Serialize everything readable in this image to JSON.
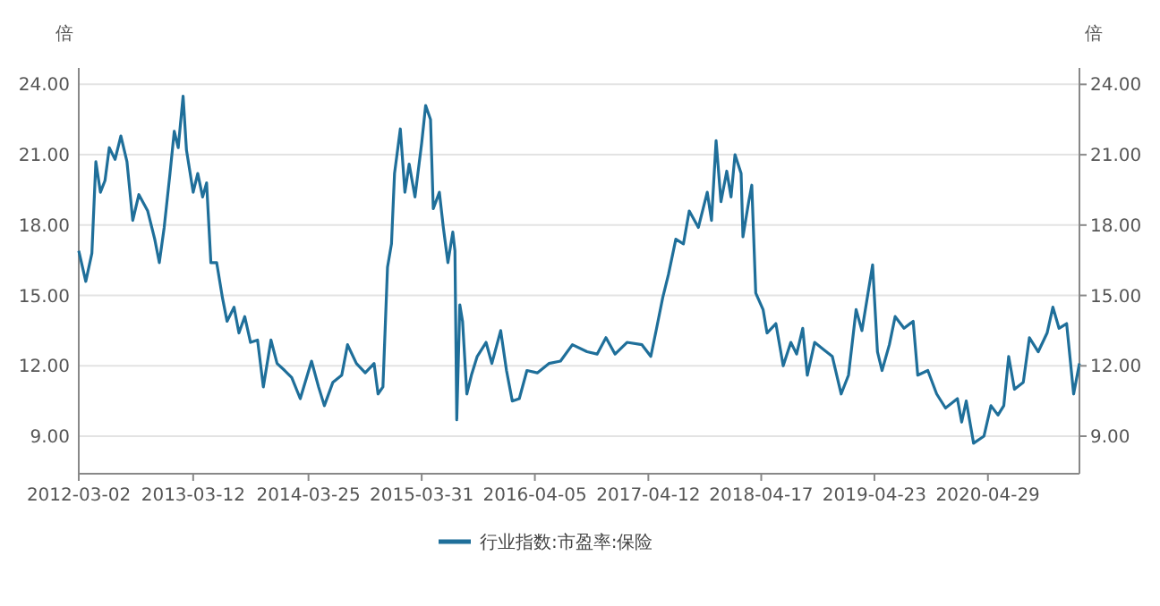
{
  "chart_data": {
    "type": "line",
    "ylabel": "倍",
    "y2label": "倍",
    "x": [
      "2012-03-02",
      "2012-03-25",
      "2012-04-14",
      "2012-04-27",
      "2012-05-12",
      "2012-05-27",
      "2012-06-10",
      "2012-06-29",
      "2012-07-18",
      "2012-08-07",
      "2012-08-26",
      "2012-09-15",
      "2012-10-14",
      "2012-11-06",
      "2012-11-21",
      "2012-12-07",
      "2012-12-26",
      "2013-01-09",
      "2013-01-22",
      "2013-02-07",
      "2013-02-18",
      "2013-03-12",
      "2013-03-27",
      "2013-04-12",
      "2013-04-25",
      "2013-05-09",
      "2013-05-28",
      "2013-06-16",
      "2013-07-01",
      "2013-07-24",
      "2013-08-09",
      "2013-08-28",
      "2013-09-16",
      "2013-10-09",
      "2013-10-28",
      "2013-11-22",
      "2013-12-12",
      "2014-01-06",
      "2014-01-29",
      "2014-02-26",
      "2014-04-04",
      "2014-04-27",
      "2014-05-16",
      "2014-06-13",
      "2014-07-12",
      "2014-07-31",
      "2014-08-29",
      "2014-09-27",
      "2014-10-26",
      "2014-11-08",
      "2014-11-24",
      "2014-12-09",
      "2014-12-22",
      "2015-01-01",
      "2015-01-20",
      "2015-02-04",
      "2015-02-18",
      "2015-03-09",
      "2015-03-31",
      "2015-04-13",
      "2015-04-29",
      "2015-05-08",
      "2015-05-28",
      "2015-06-10",
      "2015-06-25",
      "2015-07-11",
      "2015-07-18",
      "2015-07-24",
      "2015-08-03",
      "2015-08-12",
      "2015-08-26",
      "2015-09-10",
      "2015-09-29",
      "2015-10-28",
      "2015-11-16",
      "2015-12-15",
      "2016-01-03",
      "2016-01-22",
      "2016-02-14",
      "2016-03-10",
      "2016-04-13",
      "2016-05-21",
      "2016-06-28",
      "2016-08-06",
      "2016-09-23",
      "2016-10-26",
      "2016-11-24",
      "2016-12-24",
      "2017-02-01",
      "2017-03-22",
      "2017-04-20",
      "2017-05-09",
      "2017-05-29",
      "2017-06-17",
      "2017-07-11",
      "2017-08-05",
      "2017-08-24",
      "2017-09-23",
      "2017-10-22",
      "2017-11-05",
      "2017-11-20",
      "2017-12-06",
      "2017-12-25",
      "2018-01-08",
      "2018-01-21",
      "2018-02-10",
      "2018-02-16",
      "2018-03-07",
      "2018-03-17",
      "2018-03-30",
      "2018-04-23",
      "2018-05-06",
      "2018-06-04",
      "2018-06-28",
      "2018-07-23",
      "2018-08-11",
      "2018-08-31",
      "2018-09-15",
      "2018-10-09",
      "2018-11-07",
      "2018-12-06",
      "2019-01-04",
      "2019-01-28",
      "2019-02-22",
      "2019-03-13",
      "2019-04-02",
      "2019-04-17",
      "2019-05-03",
      "2019-05-18",
      "2019-06-11",
      "2019-06-30",
      "2019-07-29",
      "2019-08-28",
      "2019-09-12",
      "2019-10-15",
      "2019-11-13",
      "2019-12-12",
      "2020-01-20",
      "2020-02-03",
      "2020-02-18",
      "2020-03-13",
      "2020-04-16",
      "2020-05-09",
      "2020-06-01",
      "2020-06-20",
      "2020-07-06",
      "2020-07-25",
      "2020-08-23",
      "2020-09-12",
      "2020-10-11",
      "2020-11-09",
      "2020-11-28",
      "2020-12-18",
      "2021-01-12",
      "2021-02-04",
      "2021-02-23"
    ],
    "series": [
      {
        "name": "行业指数:市盈率:保险",
        "color": "#1f6f9a",
        "values": [
          16.9,
          15.6,
          16.8,
          20.7,
          19.4,
          19.9,
          21.3,
          20.8,
          21.8,
          20.7,
          18.2,
          19.3,
          18.6,
          17.4,
          16.4,
          17.9,
          20.2,
          22.0,
          21.3,
          23.5,
          21.2,
          19.4,
          20.2,
          19.2,
          19.8,
          16.4,
          16.4,
          14.9,
          13.9,
          14.5,
          13.4,
          14.1,
          13.0,
          13.1,
          11.1,
          13.1,
          12.1,
          11.8,
          11.5,
          10.6,
          12.2,
          11.1,
          10.3,
          11.3,
          11.6,
          12.9,
          12.1,
          11.7,
          12.1,
          10.8,
          11.1,
          16.2,
          17.2,
          20.2,
          22.1,
          19.4,
          20.6,
          19.2,
          21.5,
          23.1,
          22.5,
          18.7,
          19.4,
          17.9,
          16.4,
          17.7,
          16.9,
          9.7,
          14.6,
          13.9,
          10.8,
          11.6,
          12.4,
          13.0,
          12.1,
          13.5,
          11.8,
          10.5,
          10.6,
          11.8,
          11.7,
          12.1,
          12.2,
          12.9,
          12.6,
          12.5,
          13.2,
          12.5,
          13.0,
          12.9,
          12.4,
          13.6,
          14.9,
          15.9,
          17.4,
          17.2,
          18.6,
          17.9,
          19.4,
          18.2,
          21.6,
          19.0,
          20.3,
          19.2,
          21.0,
          20.2,
          17.5,
          19.0,
          19.7,
          15.1,
          14.4,
          13.4,
          13.8,
          12.0,
          13.0,
          12.5,
          13.6,
          11.6,
          13.0,
          12.7,
          12.4,
          10.8,
          11.6,
          14.4,
          13.5,
          15.1,
          16.3,
          12.6,
          11.8,
          12.9,
          14.1,
          13.6,
          13.9,
          11.6,
          11.8,
          10.8,
          10.2,
          10.6,
          9.6,
          10.5,
          8.7,
          9.0,
          10.3,
          9.9,
          10.3,
          12.4,
          11.0,
          11.3,
          13.2,
          12.6,
          13.4,
          14.5,
          13.6,
          13.8,
          10.8,
          12.1
        ]
      }
    ],
    "xlim": [
      "2012-03-02",
      "2021-02-23"
    ],
    "xticks": [
      "2012-03-02",
      "2013-03-12",
      "2014-03-25",
      "2015-03-31",
      "2016-04-05",
      "2017-04-12",
      "2018-04-17",
      "2019-04-23",
      "2020-04-29"
    ],
    "ylim": [
      7.4,
      24.7
    ],
    "yticks": [
      {
        "value": 9,
        "label": "9.00"
      },
      {
        "value": 12,
        "label": "12.00"
      },
      {
        "value": 15,
        "label": "15.00"
      },
      {
        "value": 18,
        "label": "18.00"
      },
      {
        "value": 21,
        "label": "21.00"
      },
      {
        "value": 24,
        "label": "24.00"
      }
    ],
    "y2lim": [
      7.4,
      24.7
    ],
    "y2ticks": [
      {
        "value": 9,
        "label": "9.00"
      },
      {
        "value": 12,
        "label": "12.00"
      },
      {
        "value": 15,
        "label": "15.00"
      },
      {
        "value": 18,
        "label": "18.00"
      },
      {
        "value": 21,
        "label": "21.00"
      },
      {
        "value": 24,
        "label": "24.00"
      }
    ],
    "grid": "y",
    "legend": "bottom",
    "marker": "none",
    "line_style": "solid"
  }
}
